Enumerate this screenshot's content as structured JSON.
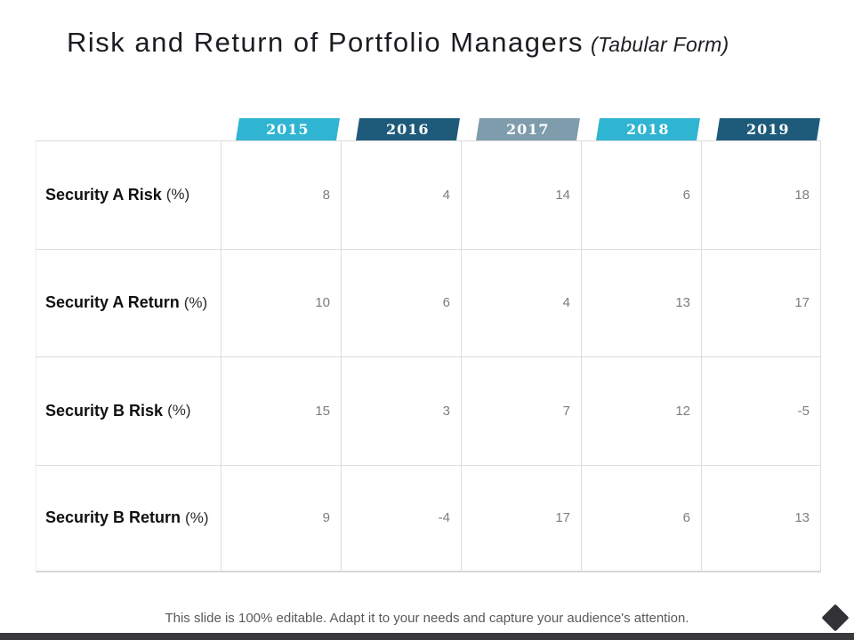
{
  "title": {
    "main": "Risk and Return of Portfolio Managers",
    "suffix": "(Tabular Form)"
  },
  "chart_data": {
    "type": "table",
    "title": "Risk and Return of Portfolio Managers (Tabular Form)",
    "categories": [
      "2015",
      "2016",
      "2017",
      "2018",
      "2019"
    ],
    "series": [
      {
        "name": "Security A Risk (%)",
        "values": [
          8,
          4,
          14,
          6,
          18
        ]
      },
      {
        "name": "Security A Return (%)",
        "values": [
          10,
          6,
          4,
          13,
          17
        ]
      },
      {
        "name": "Security B Risk (%)",
        "values": [
          15,
          3,
          7,
          12,
          -5
        ]
      },
      {
        "name": "Security B Return (%)",
        "values": [
          9,
          -4,
          17,
          6,
          13
        ]
      }
    ]
  },
  "table": {
    "years": [
      {
        "label": "2015",
        "color": "#2fb4d1"
      },
      {
        "label": "2016",
        "color": "#1e5b7a"
      },
      {
        "label": "2017",
        "color": "#7e9cac"
      },
      {
        "label": "2018",
        "color": "#2fb4d1"
      },
      {
        "label": "2019",
        "color": "#1e5b7a"
      }
    ],
    "rows": [
      {
        "label": "Security A Risk",
        "unit": "(%)",
        "values": [
          "8",
          "4",
          "14",
          "6",
          "18"
        ]
      },
      {
        "label": "Security A Return",
        "unit": "(%)",
        "values": [
          "10",
          "6",
          "4",
          "13",
          "17"
        ]
      },
      {
        "label": "Security B Risk",
        "unit": "(%)",
        "values": [
          "15",
          "3",
          "7",
          "12",
          "-5"
        ]
      },
      {
        "label": "Security B Return",
        "unit": "(%)",
        "values": [
          "9",
          "-4",
          "17",
          "6",
          "13"
        ]
      }
    ]
  },
  "footer": {
    "note": "This slide is 100% editable. Adapt it to your needs and capture your audience's attention."
  },
  "colors": {
    "accent_cyan": "#2fb4d1",
    "accent_dark_teal": "#1e5b7a",
    "accent_gray_blue": "#7e9cac",
    "bottom_bar": "#3a3a3d",
    "diamond": "#323237",
    "value_text": "#7d7d7d",
    "grid_line": "#dcdcdc"
  }
}
